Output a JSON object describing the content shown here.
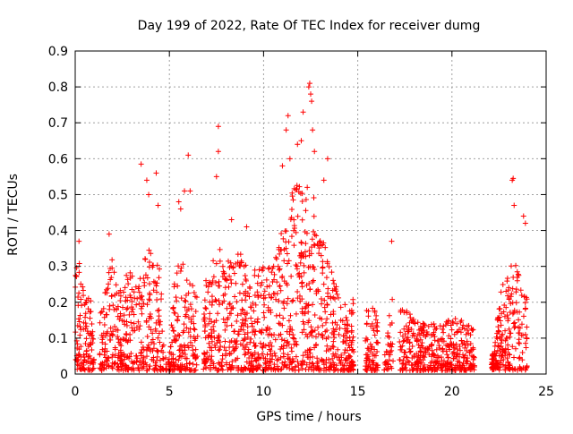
{
  "chart_data": {
    "type": "scatter",
    "title": "Day 199 of 2022, Rate Of TEC Index for receiver dumg",
    "xlabel": "GPS time / hours",
    "ylabel": "ROTI / TECUs",
    "xlim": [
      0,
      25
    ],
    "ylim": [
      0,
      0.9
    ],
    "xticks": [
      0,
      5,
      10,
      15,
      20,
      25
    ],
    "yticks": [
      0,
      0.1,
      0.2,
      0.3,
      0.4,
      0.5,
      0.6,
      0.7,
      0.8,
      0.9
    ],
    "grid": true,
    "legend": "none",
    "marker": "+",
    "color": "#ff0000",
    "envelope": {
      "x": [
        0.0,
        0.25,
        0.5,
        0.75,
        1.0,
        1.25,
        1.5,
        1.75,
        2.0,
        2.25,
        2.5,
        2.75,
        3.0,
        3.25,
        3.5,
        3.75,
        4.0,
        4.25,
        4.5,
        4.75,
        5.0,
        5.25,
        5.5,
        5.75,
        6.0,
        6.25,
        6.5,
        6.75,
        7.0,
        7.25,
        7.5,
        7.75,
        8.0,
        8.25,
        8.5,
        8.75,
        9.0,
        9.25,
        9.5,
        9.75,
        10.0,
        10.25,
        10.5,
        10.75,
        11.0,
        11.25,
        11.5,
        11.75,
        12.0,
        12.25,
        12.5,
        12.75,
        13.0,
        13.25,
        13.5,
        13.75,
        14.0,
        14.25,
        14.5,
        14.75,
        15.0,
        15.25,
        15.5,
        15.75,
        16.0,
        16.25,
        16.5,
        16.75,
        17.0,
        17.25,
        17.5,
        17.75,
        18.0,
        18.25,
        18.5,
        18.75,
        19.0,
        19.25,
        19.5,
        19.75,
        20.0,
        20.25,
        20.5,
        20.75,
        21.0,
        21.25,
        21.5,
        21.75,
        22.0,
        22.25,
        22.5,
        22.75,
        23.0,
        23.25,
        23.5,
        23.75,
        24.0
      ],
      "typical_max": [
        0.3,
        0.3,
        0.22,
        0.2,
        0.18,
        0.16,
        0.2,
        0.28,
        0.32,
        0.26,
        0.24,
        0.28,
        0.28,
        0.25,
        0.3,
        0.32,
        0.35,
        0.3,
        0.3,
        0.04,
        0.04,
        0.25,
        0.3,
        0.32,
        0.3,
        0.25,
        0.25,
        0.28,
        0.25,
        0.3,
        0.32,
        0.35,
        0.32,
        0.3,
        0.32,
        0.33,
        0.3,
        0.28,
        0.28,
        0.28,
        0.3,
        0.3,
        0.32,
        0.35,
        0.4,
        0.45,
        0.5,
        0.55,
        0.5,
        0.5,
        0.55,
        0.45,
        0.4,
        0.35,
        0.3,
        0.25,
        0.22,
        0.2,
        0.2,
        0.2,
        0.05,
        0.05,
        0.2,
        0.2,
        0.18,
        0.05,
        0.05,
        0.2,
        0.2,
        0.17,
        0.17,
        0.16,
        0.14,
        0.15,
        0.14,
        0.13,
        0.13,
        0.13,
        0.13,
        0.14,
        0.15,
        0.15,
        0.14,
        0.14,
        0.12,
        0.12,
        0.04,
        0.04,
        0.04,
        0.05,
        0.2,
        0.25,
        0.28,
        0.3,
        0.3,
        0.25,
        0.2
      ],
      "active": [
        [
          0.0,
          1.0
        ],
        [
          1.3,
          4.7
        ],
        [
          4.8,
          6.5
        ],
        [
          6.8,
          14.8
        ],
        [
          15.4,
          16.1
        ],
        [
          16.4,
          16.9
        ],
        [
          17.2,
          21.2
        ],
        [
          22.1,
          24.0
        ]
      ]
    },
    "outliers": [
      {
        "x": 0.2,
        "y": 0.37
      },
      {
        "x": 1.8,
        "y": 0.39
      },
      {
        "x": 3.5,
        "y": 0.585
      },
      {
        "x": 3.8,
        "y": 0.54
      },
      {
        "x": 3.9,
        "y": 0.5
      },
      {
        "x": 4.3,
        "y": 0.56
      },
      {
        "x": 4.4,
        "y": 0.47
      },
      {
        "x": 5.5,
        "y": 0.48
      },
      {
        "x": 5.6,
        "y": 0.46
      },
      {
        "x": 5.8,
        "y": 0.51
      },
      {
        "x": 6.0,
        "y": 0.61
      },
      {
        "x": 6.1,
        "y": 0.51
      },
      {
        "x": 7.6,
        "y": 0.69
      },
      {
        "x": 7.6,
        "y": 0.62
      },
      {
        "x": 7.5,
        "y": 0.55
      },
      {
        "x": 8.3,
        "y": 0.43
      },
      {
        "x": 9.1,
        "y": 0.41
      },
      {
        "x": 11.0,
        "y": 0.58
      },
      {
        "x": 11.2,
        "y": 0.68
      },
      {
        "x": 11.3,
        "y": 0.72
      },
      {
        "x": 11.4,
        "y": 0.6
      },
      {
        "x": 11.8,
        "y": 0.64
      },
      {
        "x": 12.0,
        "y": 0.65
      },
      {
        "x": 12.1,
        "y": 0.73
      },
      {
        "x": 12.4,
        "y": 0.8
      },
      {
        "x": 12.45,
        "y": 0.81
      },
      {
        "x": 12.5,
        "y": 0.78
      },
      {
        "x": 12.55,
        "y": 0.76
      },
      {
        "x": 12.6,
        "y": 0.68
      },
      {
        "x": 12.7,
        "y": 0.62
      },
      {
        "x": 13.2,
        "y": 0.54
      },
      {
        "x": 13.4,
        "y": 0.6
      },
      {
        "x": 16.8,
        "y": 0.37
      },
      {
        "x": 23.2,
        "y": 0.54
      },
      {
        "x": 23.25,
        "y": 0.545
      },
      {
        "x": 23.3,
        "y": 0.47
      },
      {
        "x": 23.8,
        "y": 0.44
      },
      {
        "x": 23.9,
        "y": 0.42
      }
    ]
  }
}
